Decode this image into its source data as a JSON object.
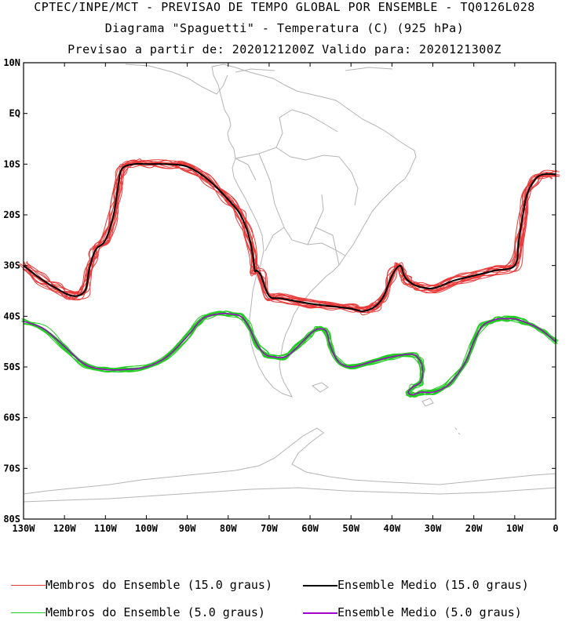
{
  "titles": {
    "line1": "CPTEC/INPE/MCT - PREVISAO DE TEMPO GLOBAL POR ENSEMBLE - TQ0126L028",
    "line2": "Diagrama \"Spaguetti\" - Temperatura (C) (925 hPa)",
    "line3": "Previsao a partir de: 2020121200Z  Valido para: 2020121300Z"
  },
  "axes": {
    "lat_labels": [
      "10N",
      "EQ",
      "10S",
      "20S",
      "30S",
      "40S",
      "50S",
      "60S",
      "70S",
      "80S"
    ],
    "lon_labels": [
      "130W",
      "120W",
      "110W",
      "100W",
      "90W",
      "80W",
      "70W",
      "60W",
      "50W",
      "40W",
      "30W",
      "20W",
      "10W",
      "0"
    ]
  },
  "legend": {
    "red_members": "Membros do Ensemble (15.0 graus)",
    "black_mean": "Ensemble Medio (15.0 graus)",
    "green_members": "Membros do Ensemble (5.0 graus)",
    "purple_mean": "Ensemble Medio (5.0 graus)"
  },
  "colors": {
    "red_members": "#e83a3a",
    "black_mean": "#000000",
    "green_members": "#22cc22",
    "purple_mean": "#a000c8",
    "coastline": "#b4b4b4"
  },
  "chart_data": {
    "type": "map",
    "lat_range": [
      -80,
      10
    ],
    "lon_range": [
      -130,
      0
    ],
    "contours": [
      {
        "name": "Ensemble Medio (15.0 graus)",
        "lon": [
          -130,
          -126,
          -122,
          -118,
          -115,
          -114,
          -113,
          -112,
          -110,
          -108,
          -107,
          -106,
          -103,
          -100,
          -95,
          -90,
          -85,
          -80,
          -77,
          -75,
          -74,
          -73.5,
          -73,
          -72,
          -70,
          -67,
          -60,
          -55,
          -50,
          -47,
          -44,
          -42,
          -40,
          -38,
          -37,
          -36,
          -34,
          -30,
          -25,
          -20,
          -15,
          -10,
          -9,
          -8,
          -7,
          -5,
          -3,
          0
        ],
        "lat": [
          -30,
          -32.5,
          -34.5,
          -36,
          -35,
          -31,
          -28,
          -26.5,
          -25,
          -20,
          -15,
          -11,
          -10,
          -10,
          -10,
          -10.5,
          -13,
          -17,
          -20,
          -24,
          -28,
          -31,
          -31,
          -32,
          -36,
          -36.5,
          -37.5,
          -38,
          -38.5,
          -39,
          -38,
          -36,
          -32,
          -30,
          -32,
          -33,
          -34,
          -34.5,
          -33,
          -32,
          -31,
          -30,
          -25,
          -20,
          -16,
          -13,
          -12,
          -12
        ]
      },
      {
        "name": "Ensemble Medio (5.0 graus)",
        "lon": [
          -130,
          -125,
          -120,
          -115,
          -110,
          -105,
          -100,
          -95,
          -90,
          -87,
          -85,
          -82,
          -80,
          -77,
          -75,
          -73,
          -71,
          -69,
          -66,
          -63,
          -60,
          -58,
          -56,
          -55,
          -53,
          -50,
          -45,
          -40,
          -35,
          -33,
          -32.5,
          -33,
          -35,
          -36,
          -35,
          -33,
          -30,
          -27,
          -25,
          -22,
          -20,
          -18,
          -16,
          -14,
          -12,
          -10,
          -8,
          -5,
          -3,
          0
        ],
        "lat": [
          -41,
          -42.5,
          -46,
          -49.5,
          -50.5,
          -50.5,
          -50,
          -48,
          -44,
          -41,
          -40,
          -39.5,
          -39.5,
          -40,
          -42,
          -45.5,
          -47.5,
          -48,
          -48,
          -46,
          -43.5,
          -42.5,
          -43,
          -46,
          -49,
          -50,
          -49,
          -48,
          -47.5,
          -49,
          -51,
          -53,
          -54,
          -55,
          -55.5,
          -55,
          -55,
          -54,
          -52.5,
          -49,
          -45,
          -42,
          -41,
          -40.5,
          -40.5,
          -40.5,
          -41,
          -42,
          -43,
          -45
        ]
      }
    ]
  }
}
